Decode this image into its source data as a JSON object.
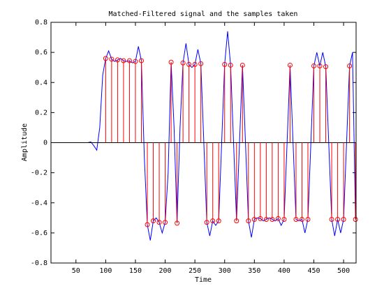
{
  "chart_data": {
    "type": "line",
    "title": "Matched-Filtered signal and the samples taken",
    "xlabel": "Time",
    "ylabel": "Amplitude",
    "xlim": [
      8,
      521
    ],
    "ylim": [
      -0.8,
      0.8
    ],
    "xticks": [
      50,
      100,
      150,
      200,
      250,
      300,
      350,
      400,
      450,
      500
    ],
    "yticks": [
      -0.8,
      -0.6,
      -0.4,
      -0.2,
      0,
      0.2,
      0.4,
      0.6,
      0.8
    ],
    "grid": false,
    "series": [
      {
        "type": "line",
        "color": "#0000ff",
        "x": [
          10,
          15,
          20,
          25,
          30,
          35,
          40,
          45,
          50,
          55,
          60,
          65,
          70,
          75,
          80,
          85,
          90,
          95,
          100,
          105,
          110,
          115,
          120,
          125,
          130,
          135,
          140,
          145,
          150,
          155,
          160,
          165,
          170,
          175,
          180,
          185,
          190,
          195,
          200,
          205,
          210,
          215,
          220,
          225,
          230,
          235,
          240,
          245,
          250,
          255,
          260,
          265,
          270,
          275,
          280,
          285,
          290,
          295,
          300,
          305,
          310,
          315,
          320,
          325,
          330,
          335,
          340,
          345,
          350,
          355,
          360,
          365,
          370,
          375,
          380,
          385,
          390,
          395,
          400,
          405,
          410,
          415,
          420,
          425,
          430,
          435,
          440,
          445,
          450,
          455,
          460,
          465,
          470,
          475,
          480,
          485,
          490,
          495,
          500,
          505,
          510,
          515,
          520
        ],
        "values": [
          0,
          0,
          0,
          0,
          0,
          0,
          0,
          0,
          0,
          0,
          0,
          0,
          0,
          0.005,
          -0.02,
          -0.05,
          0.1,
          0.45,
          0.56,
          0.61,
          0.555,
          0.54,
          0.55,
          0.56,
          0.545,
          0.54,
          0.545,
          0.53,
          0.54,
          0.64,
          0.545,
          -0.1,
          -0.545,
          -0.65,
          -0.52,
          -0.5,
          -0.53,
          -0.6,
          -0.53,
          -0.2,
          0.535,
          0.1,
          -0.535,
          0.1,
          0.53,
          0.66,
          0.52,
          0.5,
          0.52,
          0.62,
          0.525,
          0,
          -0.53,
          -0.62,
          -0.52,
          -0.55,
          -0.52,
          0,
          0.52,
          0.74,
          0.515,
          0,
          -0.52,
          0,
          0.515,
          0,
          -0.52,
          -0.63,
          -0.51,
          -0.5,
          -0.505,
          -0.52,
          -0.51,
          -0.5,
          -0.51,
          -0.52,
          -0.505,
          -0.55,
          -0.51,
          0,
          0.515,
          0,
          -0.51,
          -0.52,
          -0.51,
          -0.6,
          -0.51,
          0,
          0.51,
          0.6,
          0.51,
          0.6,
          0.505,
          0,
          -0.51,
          -0.62,
          -0.51,
          -0.6,
          -0.51,
          0,
          0.51,
          0.6,
          -0.51
        ]
      },
      {
        "type": "stem",
        "color": "#ff0000",
        "x": [
          100,
          110,
          120,
          130,
          140,
          150,
          160,
          170,
          180,
          190,
          200,
          210,
          220,
          230,
          240,
          250,
          260,
          270,
          280,
          290,
          300,
          310,
          320,
          330,
          340,
          350,
          360,
          370,
          380,
          390,
          400,
          410,
          420,
          430,
          440,
          450,
          460,
          470,
          480,
          490,
          500,
          510,
          520
        ],
        "values": [
          0.56,
          0.555,
          0.55,
          0.545,
          0.545,
          0.54,
          0.545,
          -0.545,
          -0.52,
          -0.53,
          -0.53,
          0.535,
          -0.535,
          0.53,
          0.52,
          0.52,
          0.525,
          -0.53,
          -0.52,
          -0.52,
          0.52,
          0.515,
          -0.52,
          0.515,
          -0.52,
          -0.51,
          -0.505,
          -0.51,
          -0.51,
          -0.505,
          -0.51,
          0.515,
          -0.51,
          -0.51,
          -0.51,
          0.51,
          0.51,
          0.505,
          -0.51,
          -0.51,
          -0.51,
          0.51,
          -0.51
        ]
      }
    ]
  }
}
